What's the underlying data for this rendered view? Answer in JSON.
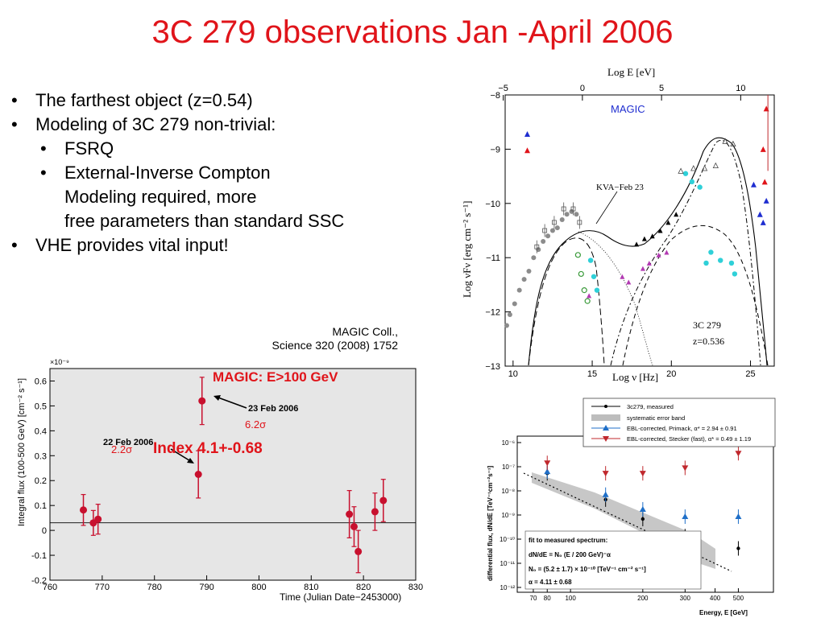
{
  "slide": {
    "title": "3C 279 observations Jan -April 2006",
    "bullets": [
      "The farthest object (z=0.54)",
      "Modeling of 3C 279 non-trivial:"
    ],
    "sub_bullets": [
      "FSRQ",
      [
        "External-Inverse Compton",
        "Modeling required, more",
        "free parameters than standard SSC"
      ]
    ],
    "bullet_last": "VHE provides vital input!",
    "credit": [
      "MAGIC Coll.,",
      "Science 320 (2008) 1752"
    ]
  },
  "chart_data": [
    {
      "type": "scatter",
      "name_ref": "lightcurve",
      "xlabel": "Time (Julian Date−2453000)",
      "ylabel": "Integral flux (100-500 GeV) [cm⁻² s⁻¹]",
      "y_multiplier": "×10⁻⁹",
      "xlim": [
        760,
        830
      ],
      "ylim": [
        -0.2,
        0.65
      ],
      "x_ticks": [
        760,
        770,
        780,
        790,
        800,
        810,
        820,
        830
      ],
      "y_ticks": [
        "0.6",
        "0.5",
        "0.4",
        "0.3",
        "0.2",
        "0.1",
        "0",
        "-0.1",
        "-0.2"
      ],
      "points": [
        {
          "x": 766.4,
          "y": 0.082,
          "yerr": 0.062
        },
        {
          "x": 768.3,
          "y": 0.03,
          "yerr": 0.05
        },
        {
          "x": 769.2,
          "y": 0.045,
          "yerr": 0.06
        },
        {
          "x": 789.1,
          "y": 0.52,
          "yerr": 0.095
        },
        {
          "x": 788.4,
          "y": 0.225,
          "yerr": 0.095
        },
        {
          "x": 817.3,
          "y": 0.065,
          "yerr": 0.095
        },
        {
          "x": 818.2,
          "y": 0.015,
          "yerr": 0.08
        },
        {
          "x": 819.0,
          "y": -0.085,
          "yerr": 0.085
        },
        {
          "x": 822.2,
          "y": 0.075,
          "yerr": 0.075
        },
        {
          "x": 823.8,
          "y": 0.12,
          "yerr": 0.085
        }
      ],
      "annotations": {
        "feb23": "23 Feb 2006",
        "feb22": "22 Feb 2006",
        "sig_a": "6.2σ",
        "sig_b": "2.2σ",
        "index": "Index 4.1+-0.68",
        "magic": "MAGIC: E>100 GeV"
      }
    },
    {
      "type": "scatter",
      "name_ref": "sed",
      "xlabel": "Log ν [Hz]",
      "top_label": "Log E [eV]",
      "ylabel": "Log νFν [erg cm⁻² s⁻¹]",
      "xlim": [
        9.5,
        26.5
      ],
      "ylim": [
        -13,
        -8
      ],
      "x_ticks": [
        10,
        15,
        20,
        25
      ],
      "top_ticks": [
        -5,
        0,
        5,
        10
      ],
      "y_ticks": [
        -8,
        -9,
        -10,
        -11,
        -12,
        -13
      ],
      "annotations": {
        "magic": "MAGIC",
        "kva": "KVA−Feb 23",
        "source": "3C 279",
        "redshift": "z=0.536"
      }
    },
    {
      "type": "scatter",
      "name_ref": "spectrum",
      "xlabel": "Energy, E [GeV]",
      "ylabel": "differential flux, dN/dE [TeV⁻¹cm⁻²s⁻¹]",
      "x_ticks": [
        "70",
        "80",
        "100",
        "200",
        "300",
        "400",
        "500"
      ],
      "y_ticks": [
        "10⁻⁶",
        "10⁻⁷",
        "10⁻⁸",
        "10⁻⁹",
        "10⁻¹⁰",
        "10⁻¹¹",
        "10⁻¹²"
      ],
      "legend": [
        "3c279, measured",
        "systematic error band",
        "EBL-corrected, Primack, α* = 2.94 ± 0.91",
        "EBL-corrected, Stecker (fast), α* = 0.49 ± 1.19"
      ],
      "fit_box": [
        "fit to measured spectrum:",
        "dN/dE = N₀ (E / 200 GeV)⁻α",
        "N₀ = (5.2 ± 1.7) × 10⁻¹⁰ [TeV⁻¹ cm⁻² s⁻¹]",
        "α = 4.11 ± 0.68"
      ],
      "series": [
        {
          "name": "3c279, measured",
          "points": [
            [
              80,
              3e-08
            ],
            [
              140,
              2.5e-09
            ],
            [
              200,
              4e-10
            ],
            [
              300,
              8e-11
            ],
            [
              500,
              2.5e-11
            ]
          ]
        },
        {
          "name": "EBL-corrected, Primack",
          "points": [
            [
              80,
              3.5e-08
            ],
            [
              140,
              4e-09
            ],
            [
              200,
              1e-09
            ],
            [
              300,
              5e-10
            ],
            [
              500,
              5e-10
            ]
          ]
        },
        {
          "name": "EBL-corrected, Stecker (fast)",
          "points": [
            [
              80,
              8e-08
            ],
            [
              140,
              3e-08
            ],
            [
              200,
              3e-08
            ],
            [
              300,
              5e-08
            ],
            [
              500,
              2e-07
            ]
          ]
        }
      ],
      "colors": {
        "measured": "#000000",
        "primack": "#1f6fc8",
        "stecker": "#c0282d",
        "band": "#bdbdbd"
      }
    }
  ]
}
